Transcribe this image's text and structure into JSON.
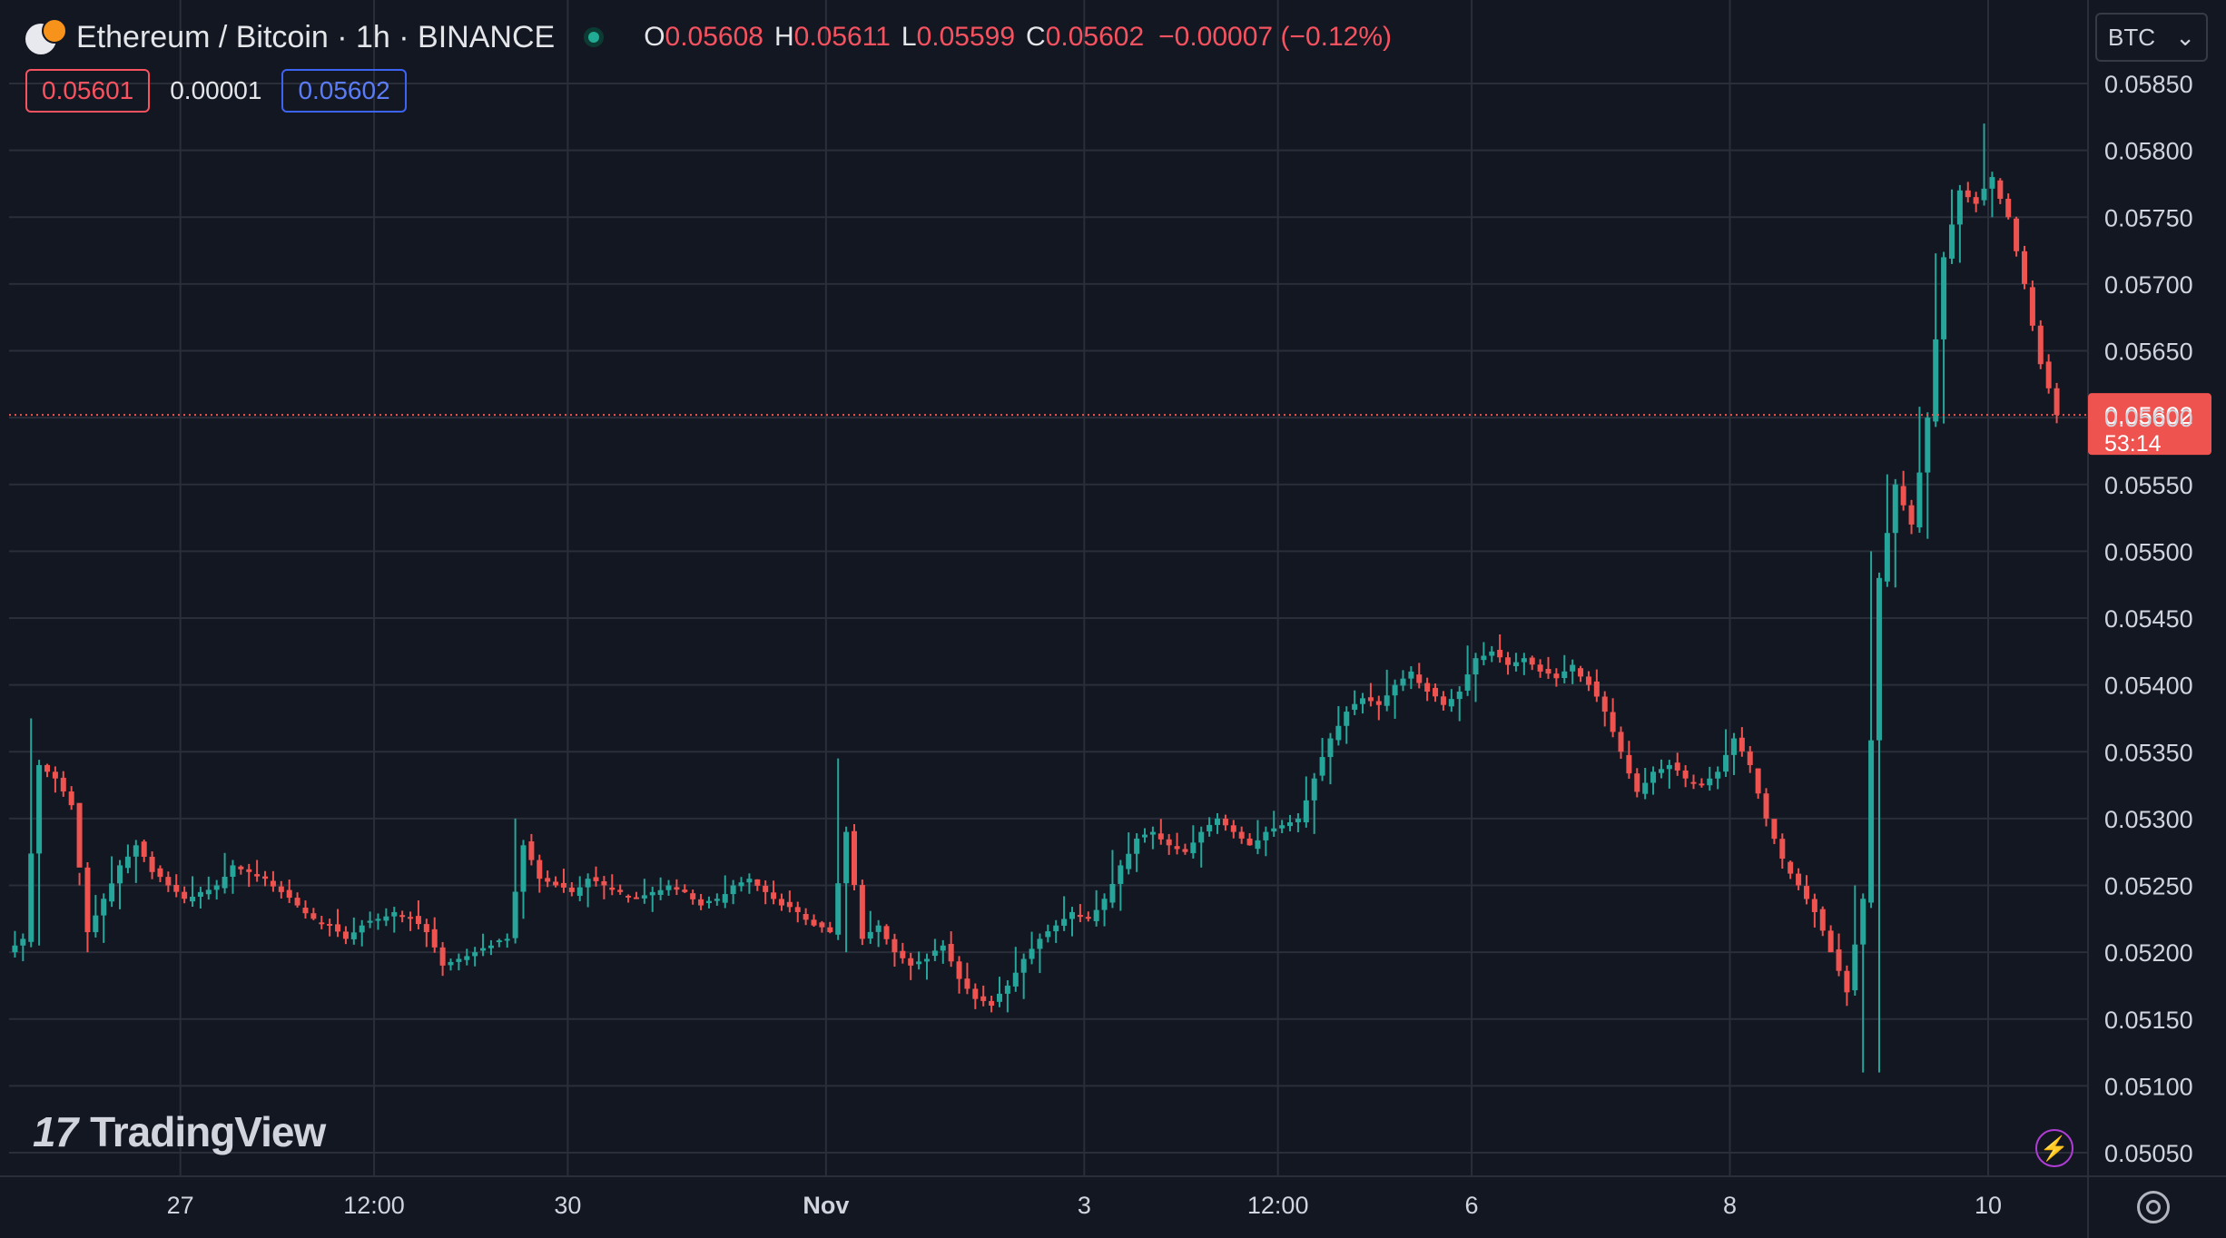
{
  "header": {
    "symbol": "Ethereum / Bitcoin · 1h · BINANCE",
    "ohlc": [
      {
        "key": "O",
        "value": "0.05608"
      },
      {
        "key": "H",
        "value": "0.05611"
      },
      {
        "key": "L",
        "value": "0.05599"
      },
      {
        "key": "C",
        "value": "0.05602"
      }
    ],
    "change": "−0.00007 (−0.12%)"
  },
  "quote": {
    "sell": "0.05601",
    "spread": "0.00001",
    "buy": "0.05602"
  },
  "currency": "BTC",
  "logo_text": "TradingView",
  "last_price": {
    "value": "0.05602",
    "countdown": "53:14"
  },
  "colors": {
    "background": "#131722",
    "grid": "#2a2e39",
    "up": "#26a69a",
    "down": "#ef5350",
    "axis_text": "#d1d4dc",
    "price_tag": "#ef5350"
  },
  "chart_data": {
    "type": "candlestick",
    "title": "Ethereum / Bitcoin · 1h · BINANCE",
    "ylim": [
      0.0503,
      0.0588
    ],
    "y_ticks": [
      "0.05850",
      "0.05800",
      "0.05750",
      "0.05700",
      "0.05650",
      "0.05600",
      "0.05550",
      "0.05500",
      "0.05450",
      "0.05400",
      "0.05350",
      "0.05300",
      "0.05250",
      "0.05200",
      "0.05150",
      "0.05100",
      "0.05050"
    ],
    "x_ticks": [
      {
        "label": "27",
        "bar": 10
      },
      {
        "label": "12:00",
        "bar": 22
      },
      {
        "label": "30",
        "bar": 34
      },
      {
        "label": "Nov",
        "bar": 50
      },
      {
        "label": "3",
        "bar": 66
      },
      {
        "label": "12:00",
        "bar": 78
      },
      {
        "label": "6",
        "bar": 90
      },
      {
        "label": "8",
        "bar": 106
      },
      {
        "label": "10",
        "bar": 122
      }
    ],
    "close_path": [
      [
        0,
        0.0521
      ],
      [
        1,
        0.0534
      ],
      [
        2,
        0.0533
      ],
      [
        3,
        0.0531
      ],
      [
        4,
        0.05215
      ],
      [
        5,
        0.0524
      ],
      [
        6,
        0.05265
      ],
      [
        7,
        0.0528
      ],
      [
        8,
        0.0526
      ],
      [
        9,
        0.0525
      ],
      [
        10,
        0.0524
      ],
      [
        11,
        0.05245
      ],
      [
        12,
        0.0525
      ],
      [
        13,
        0.05265
      ],
      [
        14,
        0.0526
      ],
      [
        15,
        0.05255
      ],
      [
        16,
        0.05245
      ],
      [
        17,
        0.05235
      ],
      [
        18,
        0.05225
      ],
      [
        19,
        0.0522
      ],
      [
        20,
        0.0521
      ],
      [
        21,
        0.0522
      ],
      [
        22,
        0.05225
      ],
      [
        23,
        0.0523
      ],
      [
        24,
        0.05225
      ],
      [
        25,
        0.05215
      ],
      [
        26,
        0.0519
      ],
      [
        27,
        0.05195
      ],
      [
        28,
        0.052
      ],
      [
        29,
        0.05205
      ],
      [
        30,
        0.0521
      ],
      [
        31,
        0.0528
      ],
      [
        32,
        0.05255
      ],
      [
        33,
        0.0525
      ],
      [
        34,
        0.05245
      ],
      [
        35,
        0.05255
      ],
      [
        36,
        0.0525
      ],
      [
        37,
        0.05245
      ],
      [
        38,
        0.0524
      ],
      [
        39,
        0.05245
      ],
      [
        40,
        0.0525
      ],
      [
        41,
        0.05245
      ],
      [
        42,
        0.05235
      ],
      [
        43,
        0.0524
      ],
      [
        44,
        0.0525
      ],
      [
        45,
        0.05255
      ],
      [
        46,
        0.05245
      ],
      [
        47,
        0.05235
      ],
      [
        48,
        0.0523
      ],
      [
        49,
        0.0522
      ],
      [
        50,
        0.05215
      ],
      [
        51,
        0.0529
      ],
      [
        52,
        0.0521
      ],
      [
        53,
        0.0522
      ],
      [
        54,
        0.052
      ],
      [
        55,
        0.0519
      ],
      [
        56,
        0.05195
      ],
      [
        57,
        0.05205
      ],
      [
        58,
        0.0518
      ],
      [
        59,
        0.05165
      ],
      [
        60,
        0.0516
      ],
      [
        61,
        0.05175
      ],
      [
        62,
        0.05195
      ],
      [
        63,
        0.0521
      ],
      [
        64,
        0.0522
      ],
      [
        65,
        0.0523
      ],
      [
        66,
        0.05225
      ],
      [
        67,
        0.0524
      ],
      [
        68,
        0.05265
      ],
      [
        69,
        0.05285
      ],
      [
        70,
        0.0529
      ],
      [
        71,
        0.0528
      ],
      [
        72,
        0.05275
      ],
      [
        73,
        0.0529
      ],
      [
        74,
        0.053
      ],
      [
        75,
        0.0529
      ],
      [
        76,
        0.0528
      ],
      [
        77,
        0.0529
      ],
      [
        78,
        0.05295
      ],
      [
        79,
        0.053
      ],
      [
        80,
        0.0533
      ],
      [
        81,
        0.0536
      ],
      [
        82,
        0.0538
      ],
      [
        83,
        0.0539
      ],
      [
        84,
        0.05385
      ],
      [
        85,
        0.054
      ],
      [
        86,
        0.0541
      ],
      [
        87,
        0.05395
      ],
      [
        88,
        0.05385
      ],
      [
        89,
        0.05395
      ],
      [
        90,
        0.0542
      ],
      [
        91,
        0.05425
      ],
      [
        92,
        0.05415
      ],
      [
        93,
        0.0542
      ],
      [
        94,
        0.0541
      ],
      [
        95,
        0.05405
      ],
      [
        96,
        0.05415
      ],
      [
        97,
        0.054
      ],
      [
        98,
        0.0538
      ],
      [
        99,
        0.0535
      ],
      [
        100,
        0.0532
      ],
      [
        101,
        0.05335
      ],
      [
        102,
        0.0534
      ],
      [
        103,
        0.0533
      ],
      [
        104,
        0.05325
      ],
      [
        105,
        0.05335
      ],
      [
        106,
        0.0536
      ],
      [
        107,
        0.0534
      ],
      [
        108,
        0.053
      ],
      [
        109,
        0.0527
      ],
      [
        110,
        0.0525
      ],
      [
        111,
        0.0523
      ],
      [
        112,
        0.052
      ],
      [
        113,
        0.0517
      ],
      [
        114,
        0.0524
      ],
      [
        115,
        0.0548
      ],
      [
        116,
        0.0555
      ],
      [
        117,
        0.0552
      ],
      [
        118,
        0.056
      ],
      [
        119,
        0.0572
      ],
      [
        120,
        0.0577
      ],
      [
        121,
        0.0576
      ],
      [
        122,
        0.0578
      ],
      [
        123,
        0.0575
      ],
      [
        124,
        0.057
      ],
      [
        125,
        0.0564
      ],
      [
        126,
        0.05602
      ]
    ],
    "series": [
      {
        "name": "ETH/BTC",
        "note_points": [
          [
            0,
            0.0521
          ],
          [
            126,
            0.05602
          ]
        ]
      }
    ],
    "wicks": [
      {
        "bar": 1,
        "high": 0.05375,
        "low": 0.05205
      },
      {
        "bar": 4,
        "high": 0.0525,
        "low": 0.052
      },
      {
        "bar": 31,
        "high": 0.053,
        "low": 0.05225
      },
      {
        "bar": 51,
        "high": 0.05345,
        "low": 0.052
      },
      {
        "bar": 60,
        "high": 0.05175,
        "low": 0.05155
      },
      {
        "bar": 115,
        "high": 0.055,
        "low": 0.0511
      },
      {
        "bar": 114,
        "high": 0.0525,
        "low": 0.0511
      },
      {
        "bar": 122,
        "high": 0.0582,
        "low": 0.0575
      }
    ]
  }
}
